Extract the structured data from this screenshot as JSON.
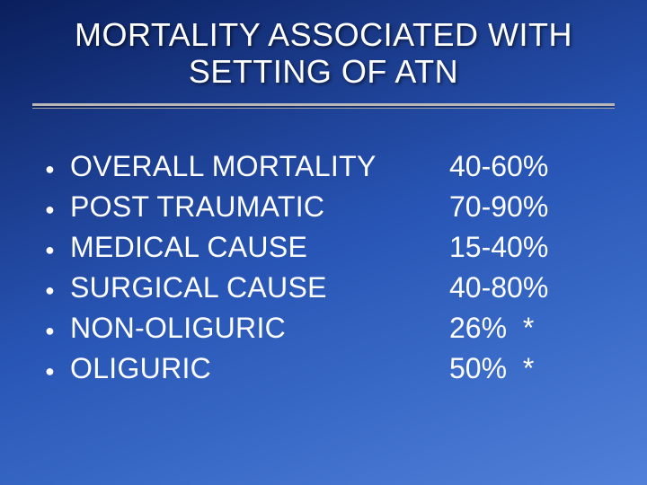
{
  "title": {
    "line1": "MORTALITY ASSOCIATED WITH",
    "line2": "SETTING OF ATN"
  },
  "items": [
    {
      "label": "OVERALL MORTALITY",
      "value": "40-60%"
    },
    {
      "label": "POST TRAUMATIC",
      "value": "70-90%"
    },
    {
      "label": "MEDICAL CAUSE",
      "value": "15-40%"
    },
    {
      "label": "SURGICAL CAUSE",
      "value": "40-80%"
    },
    {
      "label": "NON-OLIGURIC",
      "value": "26%  *"
    },
    {
      "label": "OLIGURIC",
      "value": "50%  *"
    }
  ],
  "style": {
    "background_gradient": [
      "#0a1f5c",
      "#1a3a8a",
      "#2855b5",
      "#3a6bc8",
      "#5080d8"
    ],
    "text_color": "#ffffff",
    "title_fontsize_pt": 27,
    "body_fontsize_pt": 24,
    "divider_color": "#b8b8b8",
    "font_family": "Arial"
  }
}
